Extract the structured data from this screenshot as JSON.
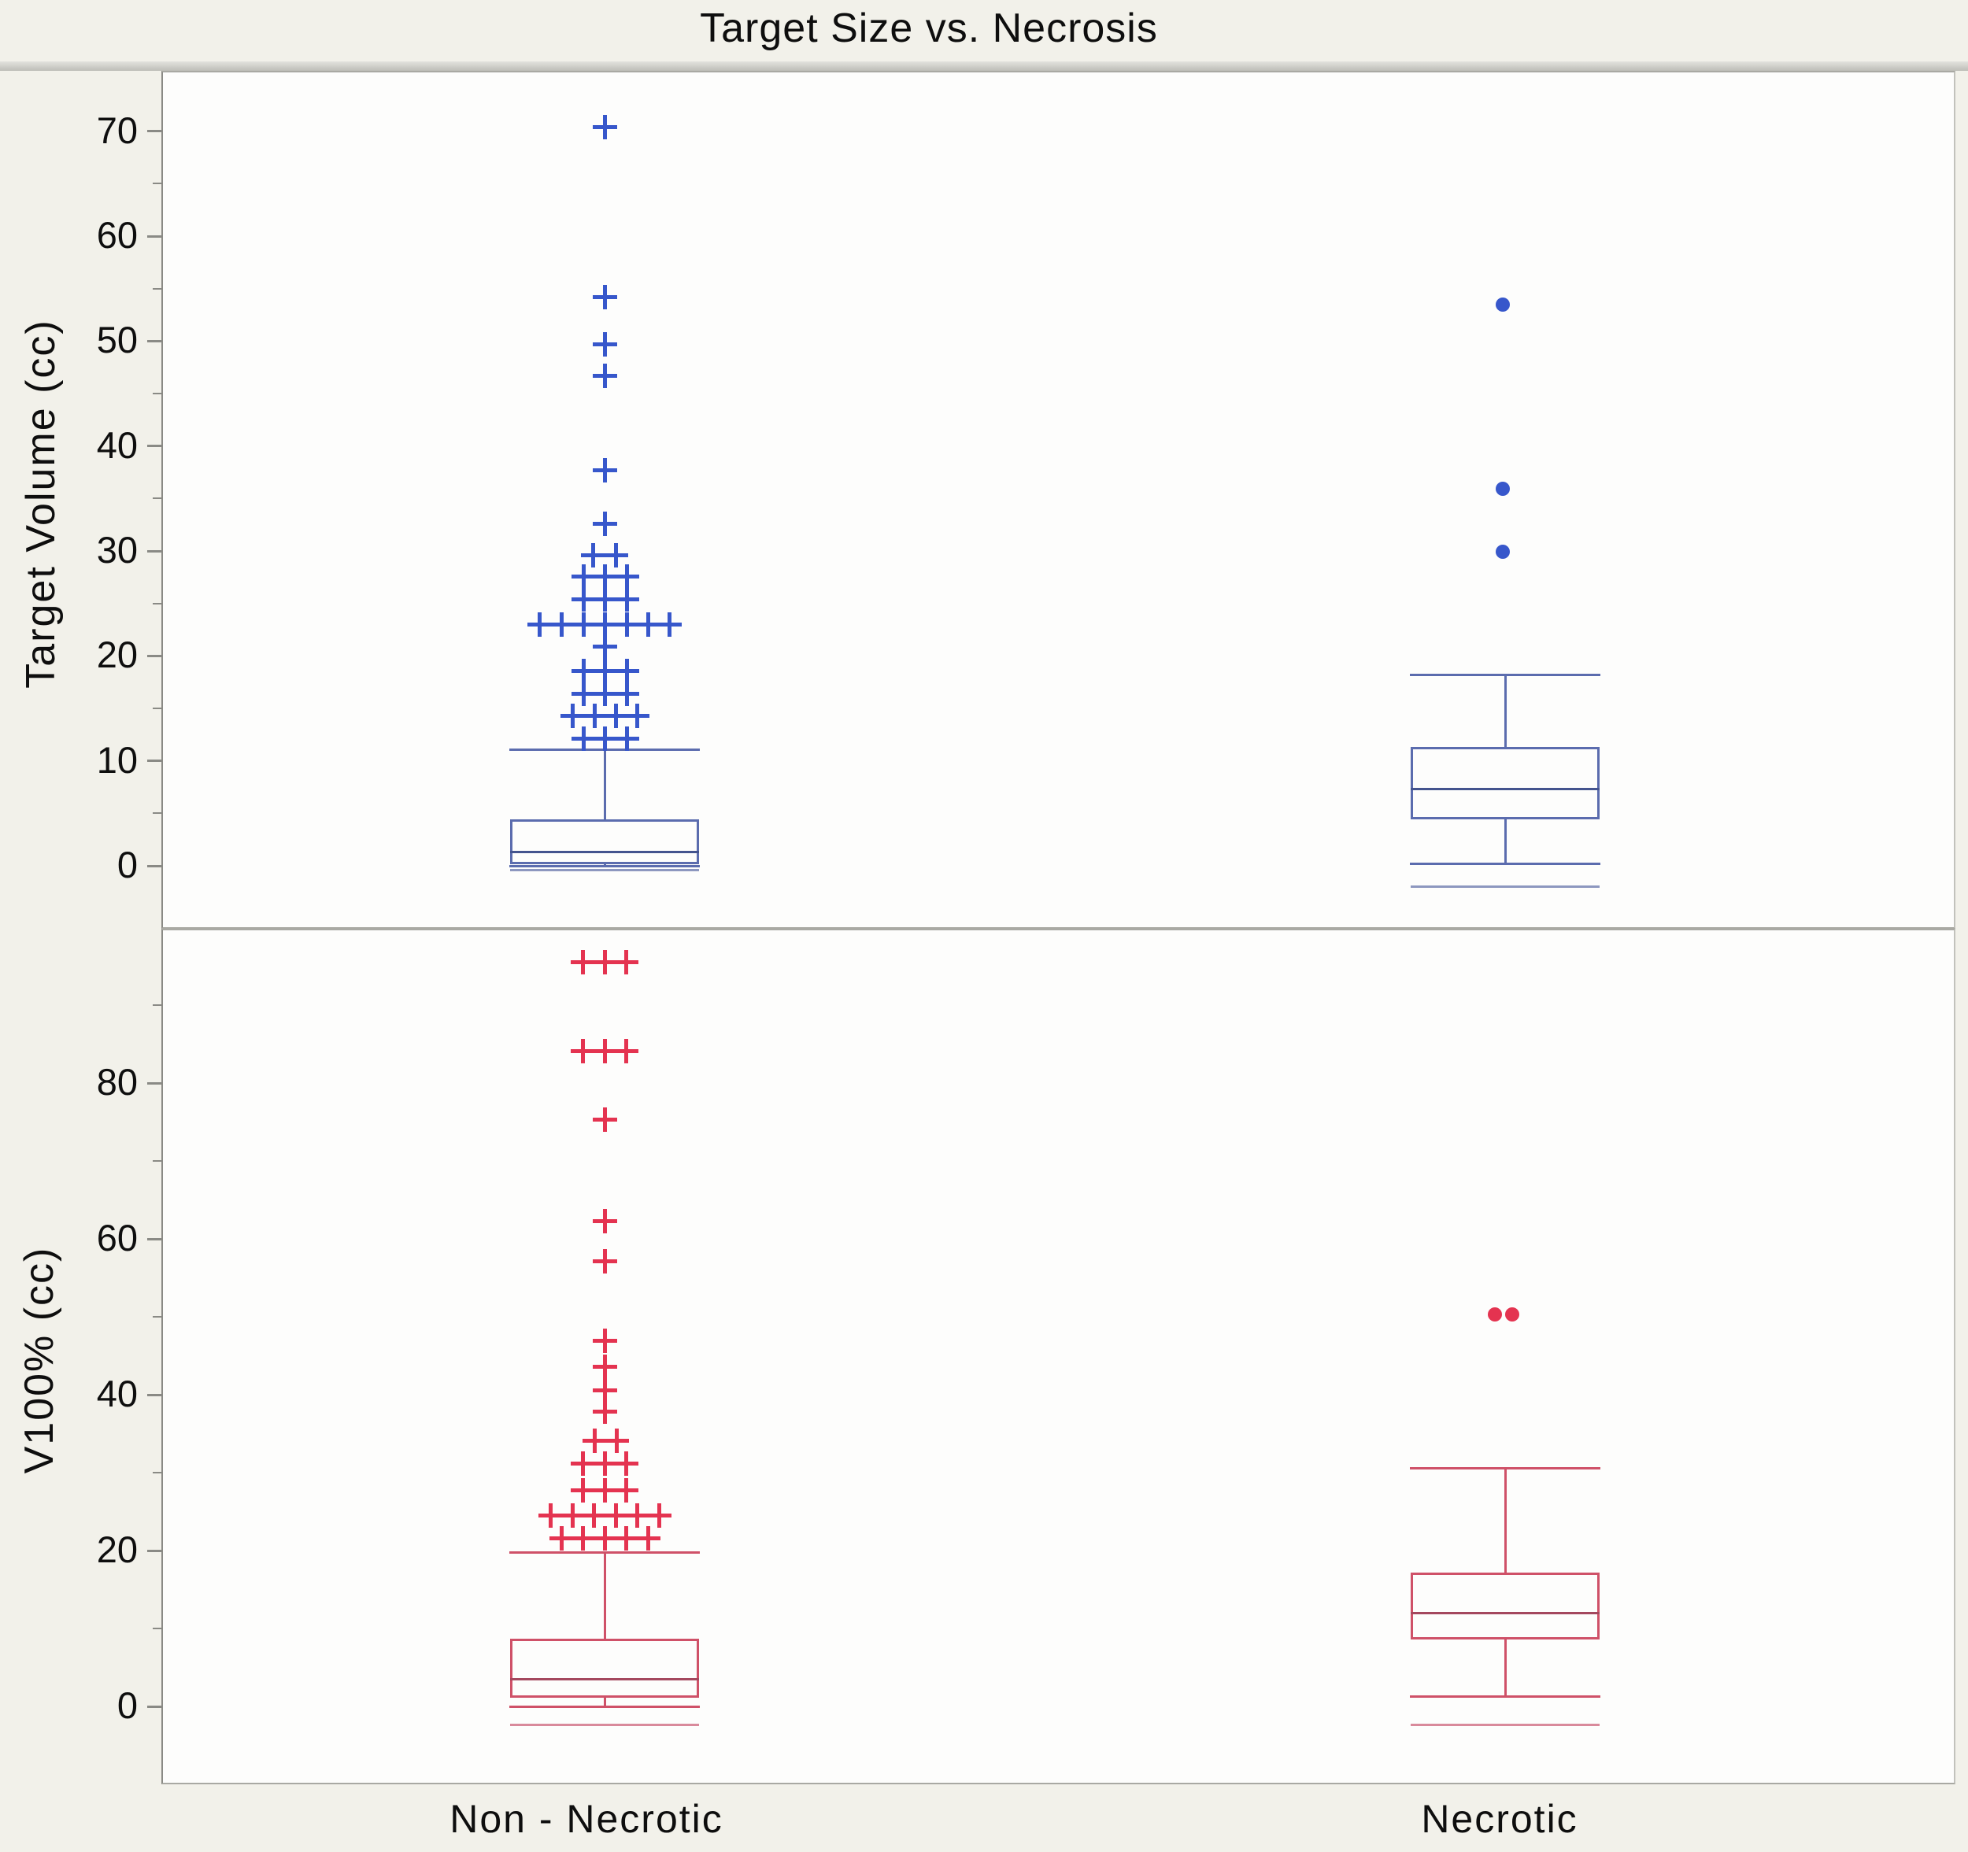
{
  "title": "Target Size vs. Necrosis",
  "colors": {
    "background": "#f2f1ea",
    "panel_background": "#fdfdfc",
    "panel_border": "#a9a9a3",
    "axis_tick": "#8a8a85",
    "text": "#0e0e0e",
    "blue_marker": "#3757cb",
    "blue_line": "#5b6cae",
    "blue_median": "#44548e",
    "blue_bracket": "#8d97bf",
    "red_marker": "#e43350",
    "red_line": "#cf5168",
    "red_median": "#a4485e",
    "red_bracket": "#d98a9b"
  },
  "x_axis": {
    "labels": [
      "Non - Necrotic",
      "Necrotic"
    ]
  },
  "chart_data": [
    {
      "type": "box",
      "panel": "top",
      "title": "Target Size vs. Necrosis",
      "ylabel": "Target Volume (cc)",
      "ylim": [
        -6,
        76
      ],
      "grid": false,
      "yticks_major": [
        0,
        10,
        20,
        30,
        40,
        50,
        60,
        70
      ],
      "yticks_minor": [
        5,
        15,
        25,
        35,
        45,
        55,
        65
      ],
      "categories": [
        "Non - Necrotic",
        "Necrotic"
      ],
      "series": [
        {
          "name": "Non - Necrotic",
          "marker": "plus",
          "color_key": "blue",
          "box": {
            "lo": 0.0,
            "q1": 0.15,
            "median": 1.3,
            "q3": 4.4,
            "hi": 11.1,
            "bracket": -0.4
          },
          "outlier_rows": [
            {
              "v": 70.4,
              "dx": [
                0
              ]
            },
            {
              "v": 54.2,
              "dx": [
                0
              ]
            },
            {
              "v": 49.7,
              "dx": [
                0
              ]
            },
            {
              "v": 46.7,
              "dx": [
                0
              ]
            },
            {
              "v": 37.7,
              "dx": [
                0
              ]
            },
            {
              "v": 32.6,
              "dx": [
                0
              ]
            },
            {
              "v": 29.6,
              "dx": [
                -15,
                14
              ]
            },
            {
              "v": 27.6,
              "dx": [
                -27,
                0,
                28
              ]
            },
            {
              "v": 25.4,
              "dx": [
                -27,
                0,
                28
              ]
            },
            {
              "v": 23.0,
              "dx": [
                -83,
                -55,
                -27,
                0,
                28,
                55,
                82
              ]
            },
            {
              "v": 20.9,
              "dx": [
                0
              ]
            },
            {
              "v": 18.6,
              "dx": [
                -27,
                0,
                28
              ]
            },
            {
              "v": 16.4,
              "dx": [
                -27,
                0,
                28
              ]
            },
            {
              "v": 14.3,
              "dx": [
                -41,
                -13,
                14,
                41
              ]
            },
            {
              "v": 12.1,
              "dx": [
                -27,
                0,
                28
              ]
            }
          ]
        },
        {
          "name": "Necrotic",
          "marker": "dot",
          "color_key": "blue",
          "box": {
            "lo": 0.2,
            "q1": 4.4,
            "median": 7.3,
            "q3": 11.3,
            "hi": 18.2,
            "bracket": -2.0
          },
          "outlier_rows": [
            {
              "v": 53.5,
              "dx": [
                -3
              ]
            },
            {
              "v": 35.9,
              "dx": [
                -3
              ]
            },
            {
              "v": 29.9,
              "dx": [
                -3
              ]
            }
          ]
        }
      ]
    },
    {
      "type": "box",
      "panel": "bottom",
      "ylabel": "V100% (cc)",
      "ylim": [
        -10,
        100
      ],
      "grid": false,
      "yticks_major": [
        0,
        20,
        40,
        60,
        80
      ],
      "yticks_minor": [
        10,
        30,
        50,
        70,
        90
      ],
      "categories": [
        "Non - Necrotic",
        "Necrotic"
      ],
      "series": [
        {
          "name": "Non - Necrotic",
          "marker": "plus",
          "color_key": "red",
          "box": {
            "lo": 0.0,
            "q1": 1.1,
            "median": 3.5,
            "q3": 8.7,
            "hi": 19.7,
            "bracket": -2.4
          },
          "outlier_rows": [
            {
              "v": 95.5,
              "dx": [
                -28,
                0,
                27
              ]
            },
            {
              "v": 84.1,
              "dx": [
                -28,
                0,
                27
              ]
            },
            {
              "v": 75.3,
              "dx": [
                0
              ]
            },
            {
              "v": 62.3,
              "dx": [
                0
              ]
            },
            {
              "v": 57.1,
              "dx": [
                0
              ]
            },
            {
              "v": 46.9,
              "dx": [
                0
              ]
            },
            {
              "v": 43.6,
              "dx": [
                0
              ]
            },
            {
              "v": 40.6,
              "dx": [
                0
              ]
            },
            {
              "v": 37.8,
              "dx": [
                0
              ]
            },
            {
              "v": 34.1,
              "dx": [
                -13,
                15
              ]
            },
            {
              "v": 31.2,
              "dx": [
                -28,
                0,
                27
              ]
            },
            {
              "v": 27.7,
              "dx": [
                -28,
                0,
                27
              ]
            },
            {
              "v": 24.5,
              "dx": [
                -69,
                -41,
                -14,
                14,
                41,
                69
              ]
            },
            {
              "v": 21.6,
              "dx": [
                -55,
                -28,
                0,
                27,
                55
              ]
            }
          ]
        },
        {
          "name": "Necrotic",
          "marker": "dot",
          "color_key": "red",
          "box": {
            "lo": 1.3,
            "q1": 8.6,
            "median": 12.0,
            "q3": 17.2,
            "hi": 30.6,
            "bracket": -2.4
          },
          "outlier_rows": [
            {
              "v": 50.3,
              "dx": [
                -13,
                9
              ]
            }
          ]
        }
      ]
    }
  ]
}
